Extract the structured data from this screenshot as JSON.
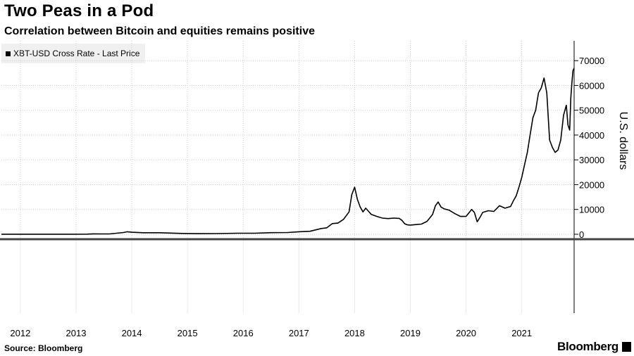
{
  "title": "Two Peas in a Pod",
  "subtitle": "Correlation between Bitcoin and equities remains positive",
  "legend": {
    "label": "XBT-USD Cross Rate - Last Price",
    "color": "#000000"
  },
  "source": "Source: Bloomberg",
  "brand": "Bloomberg",
  "chart_data": {
    "type": "line",
    "ylabel": "U.S. dollars",
    "ylim": [
      -2000,
      78000
    ],
    "yticks": [
      0,
      10000,
      20000,
      30000,
      40000,
      50000,
      60000,
      70000
    ],
    "ytick_labels": [
      "0",
      "10000",
      "20000",
      "30000",
      "40000",
      "50000",
      "60000",
      "70000"
    ],
    "xlim": [
      2011.66,
      2021.94
    ],
    "xticks": [
      2012,
      2013,
      2014,
      2015,
      2016,
      2017,
      2018,
      2019,
      2020,
      2021
    ],
    "xtick_labels": [
      "2012",
      "2013",
      "2014",
      "2015",
      "2016",
      "2017",
      "2018",
      "2019",
      "2020",
      "2021"
    ],
    "grid": true,
    "legend_position": "top-left",
    "series": [
      {
        "name": "XBT-USD Cross Rate - Last Price",
        "color": "#000000",
        "x": [
          2011.66,
          2012.0,
          2012.5,
          2012.9,
          2013.2,
          2013.3,
          2013.45,
          2013.6,
          2013.85,
          2013.92,
          2014.0,
          2014.2,
          2014.5,
          2014.8,
          2015.0,
          2015.2,
          2015.5,
          2015.9,
          2016.2,
          2016.5,
          2016.8,
          2017.0,
          2017.2,
          2017.4,
          2017.5,
          2017.6,
          2017.7,
          2017.8,
          2017.9,
          2017.95,
          2018.0,
          2018.05,
          2018.1,
          2018.15,
          2018.2,
          2018.3,
          2018.4,
          2018.5,
          2018.6,
          2018.7,
          2018.8,
          2018.85,
          2018.9,
          2018.95,
          2019.0,
          2019.1,
          2019.2,
          2019.3,
          2019.4,
          2019.45,
          2019.5,
          2019.55,
          2019.6,
          2019.7,
          2019.8,
          2019.9,
          2020.0,
          2020.1,
          2020.15,
          2020.2,
          2020.25,
          2020.3,
          2020.4,
          2020.5,
          2020.6,
          2020.7,
          2020.8,
          2020.85,
          2020.9,
          2020.95,
          2021.0,
          2021.05,
          2021.1,
          2021.15,
          2021.2,
          2021.25,
          2021.3,
          2021.35,
          2021.4,
          2021.45,
          2021.5,
          2021.55,
          2021.6,
          2021.65,
          2021.7,
          2021.75,
          2021.8,
          2021.83,
          2021.86,
          2021.88,
          2021.9,
          2021.92,
          2021.94
        ],
        "values": [
          5,
          6,
          8,
          12,
          50,
          150,
          120,
          120,
          700,
          1000,
          800,
          600,
          600,
          380,
          300,
          250,
          270,
          420,
          420,
          650,
          700,
          1000,
          1200,
          2300,
          2600,
          4300,
          4500,
          6000,
          9000,
          16000,
          19000,
          14000,
          11000,
          9000,
          10500,
          8000,
          7200,
          6500,
          6300,
          6500,
          6400,
          5600,
          4200,
          3800,
          3700,
          3900,
          4100,
          5200,
          8000,
          11500,
          13000,
          11000,
          10300,
          9700,
          8300,
          7200,
          7200,
          10000,
          8800,
          5000,
          6800,
          8800,
          9500,
          9200,
          11500,
          10500,
          11200,
          13500,
          15500,
          19000,
          23000,
          28000,
          33000,
          40000,
          47000,
          50000,
          57000,
          59000,
          63000,
          57000,
          38000,
          35000,
          33000,
          34000,
          38000,
          48000,
          52000,
          44000,
          42000,
          55000,
          61000,
          66000,
          67000
        ]
      }
    ]
  }
}
